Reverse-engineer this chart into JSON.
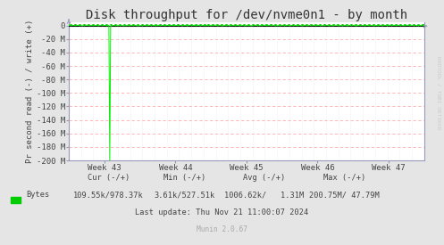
{
  "title": "Disk throughput for /dev/nvme0n1 - by month",
  "ylabel": "Pr second read (-) / write (+)",
  "bg_color": "#e5e5e5",
  "plot_bg_color": "#ffffff",
  "grid_h_color": "#ffaaaa",
  "grid_v_color": "#ddddee",
  "line_color": "#00ee00",
  "marker_color": "#00cc00",
  "axis_color": "#9999bb",
  "ylim": [
    -200,
    5
  ],
  "yticks": [
    0,
    -20,
    -40,
    -60,
    -80,
    -100,
    -120,
    -140,
    -160,
    -180,
    -200
  ],
  "ytick_labels": [
    "0",
    "-20 M",
    "-40 M",
    "-60 M",
    "-80 M",
    "-100 M",
    "-120 M",
    "-140 M",
    "-160 M",
    "-180 M",
    "-200 M"
  ],
  "week_labels": [
    "Week 43",
    "Week 44",
    "Week 45",
    "Week 46",
    "Week 47"
  ],
  "legend_label": "Bytes",
  "legend_color": "#00cc00",
  "last_update": "Last update: Thu Nov 21 11:00:07 2024",
  "munin_version": "Munin 2.0.67",
  "watermark": "RRDTOOL / TOBI OETIKER",
  "cur_label": "Cur (-/+)",
  "min_label": "Min (-/+)",
  "avg_label": "Avg (-/+)",
  "max_label": "Max (-/+)",
  "cur_val": "109.55k/978.37k",
  "min_val": "3.61k/527.51k",
  "avg_val": "1006.62k/   1.31M",
  "max_val": "200.75M/ 47.79M",
  "title_fontsize": 10,
  "label_fontsize": 6.5,
  "tick_fontsize": 6.5,
  "stats_fontsize": 6.2,
  "watermark_fontsize": 4.5
}
